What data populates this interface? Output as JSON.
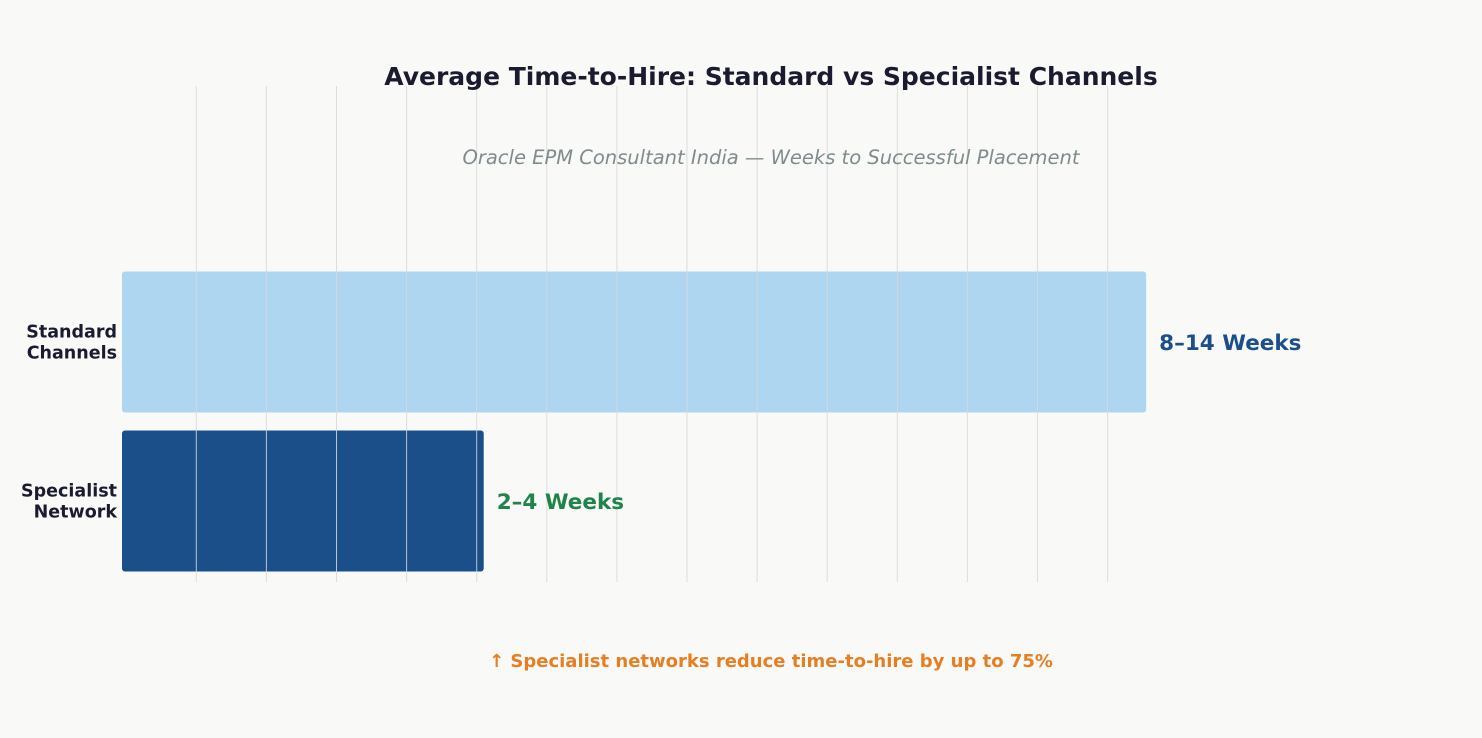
{
  "chart_data": {
    "type": "bar",
    "orientation": "horizontal",
    "title": "Average Time-to-Hire: Standard vs Specialist Channels",
    "subtitle": "Oracle EPM Consultant India — Weeks to Successful Placement",
    "categories": [
      {
        "lines": [
          "Standard",
          "Channels"
        ]
      },
      {
        "lines": [
          "Specialist",
          "Network"
        ]
      }
    ],
    "values": [
      13.55,
      4.1
    ],
    "value_labels": [
      "8–14 Weeks",
      "2–4 Weeks"
    ],
    "colors": [
      "#aed6f1",
      "#1b4f8a"
    ],
    "value_label_colors": [
      "#1b4f8a",
      "#1e8449"
    ],
    "xlim": [
      -1.06,
      17.3
    ],
    "x_gridlines": [
      0,
      1,
      2,
      3,
      4,
      5,
      6,
      7,
      8,
      9,
      10,
      11,
      12,
      13
    ],
    "grid": true,
    "footnote": "↑  Specialist networks reduce time-to-hire by up to 75%",
    "footnote_color": "#e67e22"
  }
}
